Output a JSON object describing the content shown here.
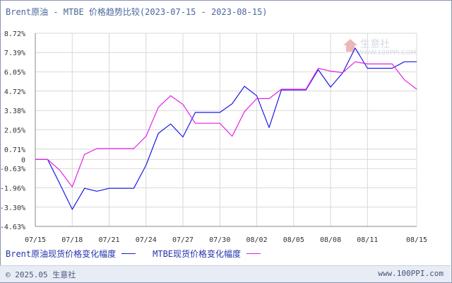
{
  "title": "Brent原油 - MTBE 价格趋势比较(2023-07-15 - 2023-08-15)",
  "watermark": {
    "name": "生意社",
    "url": "WWW.100PPI.COM"
  },
  "footer": {
    "copyright": "© 2025.05 生意社",
    "site": "www.100PPI.com"
  },
  "colors": {
    "brent": "#1a1ae6",
    "mtbe": "#e620e6",
    "grid": "#d8d8d8",
    "axis": "#888888",
    "tick_label": "#333333"
  },
  "chart_data": {
    "type": "line",
    "title": "Brent原油 - MTBE 价格趋势比较(2023-07-15 - 2023-08-15)",
    "x": [
      "07/15",
      "07/16",
      "07/17",
      "07/18",
      "07/19",
      "07/20",
      "07/21",
      "07/22",
      "07/23",
      "07/24",
      "07/25",
      "07/26",
      "07/27",
      "07/28",
      "07/29",
      "07/30",
      "07/31",
      "08/01",
      "08/02",
      "08/03",
      "08/04",
      "08/05",
      "08/06",
      "08/07",
      "08/08",
      "08/09",
      "08/10",
      "08/11",
      "08/12",
      "08/13",
      "08/14",
      "08/15"
    ],
    "x_tick_labels": [
      "07/15",
      "07/18",
      "07/21",
      "07/24",
      "07/27",
      "07/30",
      "08/02",
      "08/05",
      "08/08",
      "08/11",
      "08/15"
    ],
    "y_tick_labels": [
      "8.72%",
      "7.39%",
      "6.05%",
      "4.72%",
      "3.38%",
      "2.05%",
      "0.71%",
      "0",
      "-0.63%",
      "-1.96%",
      "-3.30%",
      "-4.63%"
    ],
    "ylim": [
      -4.63,
      8.72
    ],
    "grid": true,
    "legend_position": "bottom",
    "series": [
      {
        "name": "Brent原油现货价格变化幅度",
        "color": "#1a1ae6",
        "values": [
          0,
          0,
          -1.7,
          -3.45,
          -2.0,
          -2.2,
          -2.0,
          -2.0,
          -2.0,
          -0.4,
          1.8,
          2.45,
          1.55,
          3.25,
          3.25,
          3.25,
          3.85,
          5.05,
          4.4,
          2.2,
          4.8,
          4.8,
          4.8,
          6.2,
          5.0,
          6.0,
          7.7,
          6.3,
          6.3,
          6.3,
          6.75,
          6.75
        ]
      },
      {
        "name": "MTBE现货价格变化幅度",
        "color": "#e620e6",
        "values": [
          0,
          0,
          -0.75,
          -1.9,
          0.35,
          0.75,
          0.75,
          0.75,
          0.75,
          1.6,
          3.6,
          4.4,
          3.8,
          2.5,
          2.5,
          2.5,
          1.6,
          3.3,
          4.2,
          4.2,
          4.85,
          4.85,
          4.85,
          6.3,
          6.1,
          6.0,
          6.75,
          6.6,
          6.6,
          6.6,
          5.5,
          4.85
        ]
      }
    ]
  }
}
